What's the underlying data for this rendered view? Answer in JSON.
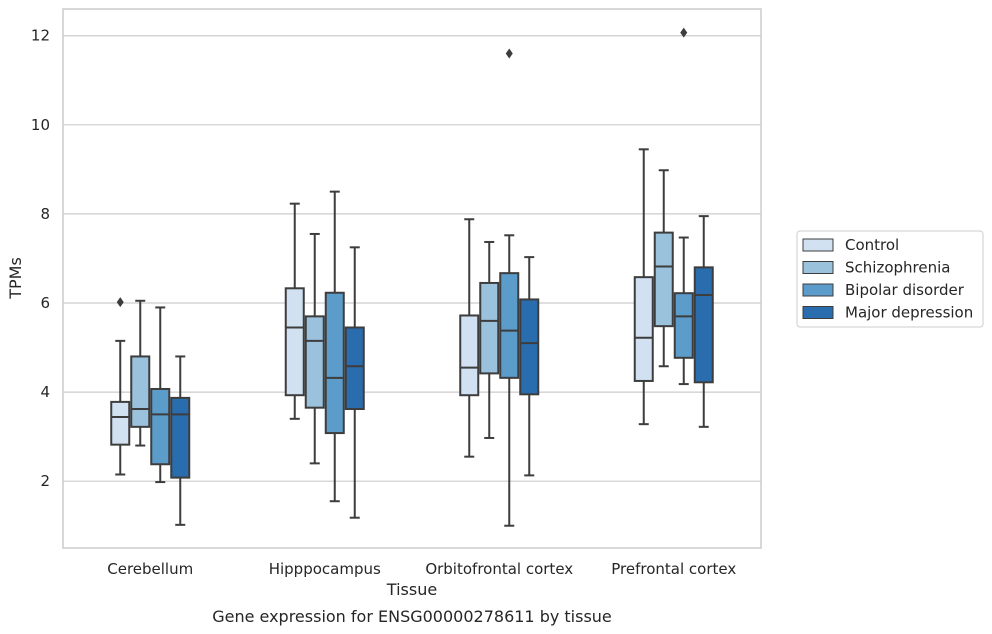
{
  "caption": "Gene expression for ENSG00000278611 by tissue",
  "chart_data": {
    "type": "box",
    "xlabel": "Tissue",
    "ylabel": "TPMs",
    "ylim": [
      0.5,
      12.6
    ],
    "yticks": [
      2,
      4,
      6,
      8,
      10,
      12
    ],
    "grid": "horizontal",
    "legend": "right",
    "categories": [
      "Cerebellum",
      "Hipppocampus",
      "Orbitofrontal cortex",
      "Prefrontal cortex"
    ],
    "series": [
      {
        "name": "Control",
        "color": "#d1e1f1",
        "boxes": [
          {
            "whislo": 2.15,
            "q1": 2.82,
            "med": 3.44,
            "q3": 3.78,
            "whishi": 5.15,
            "fliers": [
              6.02
            ]
          },
          {
            "whislo": 3.4,
            "q1": 3.93,
            "med": 5.45,
            "q3": 6.33,
            "whishi": 8.23,
            "fliers": []
          },
          {
            "whislo": 2.55,
            "q1": 3.93,
            "med": 4.55,
            "q3": 5.72,
            "whishi": 7.88,
            "fliers": []
          },
          {
            "whislo": 3.28,
            "q1": 4.25,
            "med": 5.22,
            "q3": 6.58,
            "whishi": 9.45,
            "fliers": []
          }
        ]
      },
      {
        "name": "Schizophrenia",
        "color": "#9ac2dc",
        "boxes": [
          {
            "whislo": 2.8,
            "q1": 3.22,
            "med": 3.62,
            "q3": 4.8,
            "whishi": 6.05,
            "fliers": []
          },
          {
            "whislo": 2.4,
            "q1": 3.65,
            "med": 5.15,
            "q3": 5.7,
            "whishi": 7.55,
            "fliers": []
          },
          {
            "whislo": 2.97,
            "q1": 4.42,
            "med": 5.6,
            "q3": 6.45,
            "whishi": 7.37,
            "fliers": []
          },
          {
            "whislo": 4.58,
            "q1": 5.48,
            "med": 6.82,
            "q3": 7.58,
            "whishi": 8.98,
            "fliers": []
          }
        ]
      },
      {
        "name": "Bipolar disorder",
        "color": "#5b9cca",
        "boxes": [
          {
            "whislo": 1.98,
            "q1": 2.38,
            "med": 3.5,
            "q3": 4.07,
            "whishi": 5.9,
            "fliers": []
          },
          {
            "whislo": 1.55,
            "q1": 3.08,
            "med": 4.32,
            "q3": 6.23,
            "whishi": 8.5,
            "fliers": []
          },
          {
            "whislo": 1.0,
            "q1": 4.32,
            "med": 5.38,
            "q3": 6.67,
            "whishi": 7.52,
            "fliers": [
              11.6
            ]
          },
          {
            "whislo": 4.18,
            "q1": 4.77,
            "med": 5.7,
            "q3": 6.22,
            "whishi": 7.47,
            "fliers": [
              12.07
            ]
          }
        ]
      },
      {
        "name": "Major depression",
        "color": "#2a6dae",
        "boxes": [
          {
            "whislo": 1.02,
            "q1": 2.08,
            "med": 3.5,
            "q3": 3.87,
            "whishi": 4.8,
            "fliers": []
          },
          {
            "whislo": 1.18,
            "q1": 3.62,
            "med": 4.58,
            "q3": 5.45,
            "whishi": 7.25,
            "fliers": []
          },
          {
            "whislo": 2.13,
            "q1": 3.95,
            "med": 5.1,
            "q3": 6.08,
            "whishi": 7.03,
            "fliers": []
          },
          {
            "whislo": 3.22,
            "q1": 4.22,
            "med": 6.18,
            "q3": 6.8,
            "whishi": 7.95,
            "fliers": []
          }
        ]
      }
    ]
  }
}
